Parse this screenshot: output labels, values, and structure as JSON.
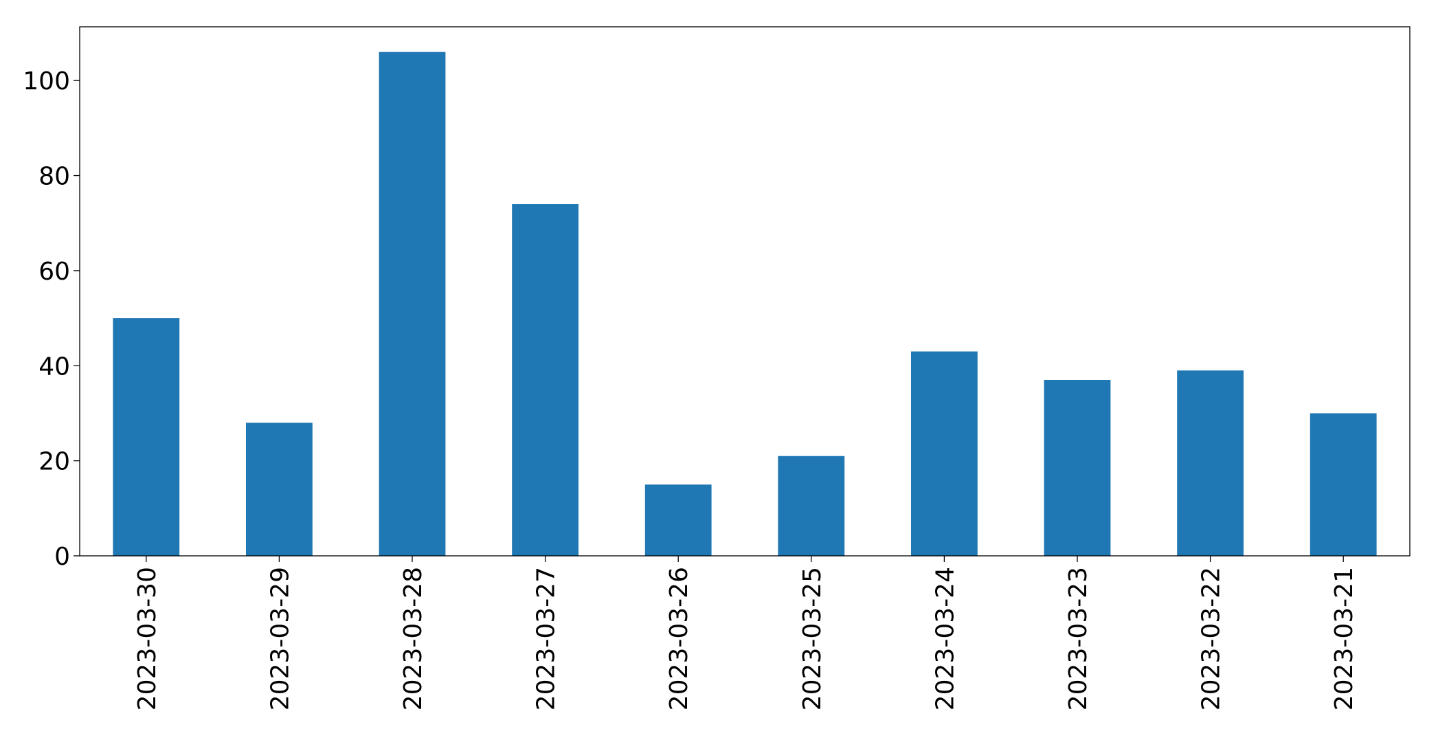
{
  "chart_data": {
    "type": "bar",
    "categories": [
      "2023-03-30",
      "2023-03-29",
      "2023-03-28",
      "2023-03-27",
      "2023-03-26",
      "2023-03-25",
      "2023-03-24",
      "2023-03-23",
      "2023-03-22",
      "2023-03-21"
    ],
    "values": [
      50,
      28,
      106,
      74,
      15,
      21,
      43,
      37,
      39,
      30
    ],
    "color": "#1f77b4",
    "ylim": [
      0,
      111.3
    ],
    "yticks": [
      0,
      20,
      40,
      60,
      80,
      100
    ],
    "grid": false
  }
}
